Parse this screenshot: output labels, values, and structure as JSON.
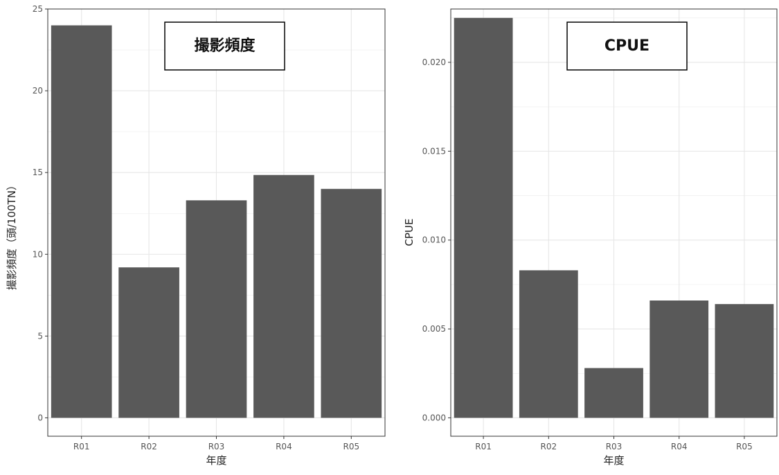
{
  "chart_data": [
    {
      "type": "bar",
      "title": "撮影頻度",
      "xlabel": "年度",
      "ylabel": "撮影頻度（頭/100TN）",
      "categories": [
        "R01",
        "R02",
        "R03",
        "R04",
        "R05"
      ],
      "values": [
        24.0,
        9.2,
        13.3,
        14.85,
        14.0
      ],
      "ylim": [
        0,
        25
      ],
      "yticks": [
        0,
        5,
        10,
        15,
        20,
        25
      ],
      "ytick_labels": [
        "0",
        "5",
        "10",
        "15",
        "20",
        "25"
      ],
      "grid": true,
      "bar_color": "#595959"
    },
    {
      "type": "bar",
      "title": "CPUE",
      "xlabel": "年度",
      "ylabel": "CPUE",
      "categories": [
        "R01",
        "R02",
        "R03",
        "R04",
        "R05"
      ],
      "values": [
        0.0225,
        0.0083,
        0.0028,
        0.0066,
        0.0064
      ],
      "ylim": [
        0,
        0.023
      ],
      "yticks": [
        0,
        0.005,
        0.01,
        0.015,
        0.02
      ],
      "ytick_labels": [
        "0.000",
        "0.005",
        "0.010",
        "0.015",
        "0.020"
      ],
      "grid": true,
      "bar_color": "#595959"
    }
  ]
}
